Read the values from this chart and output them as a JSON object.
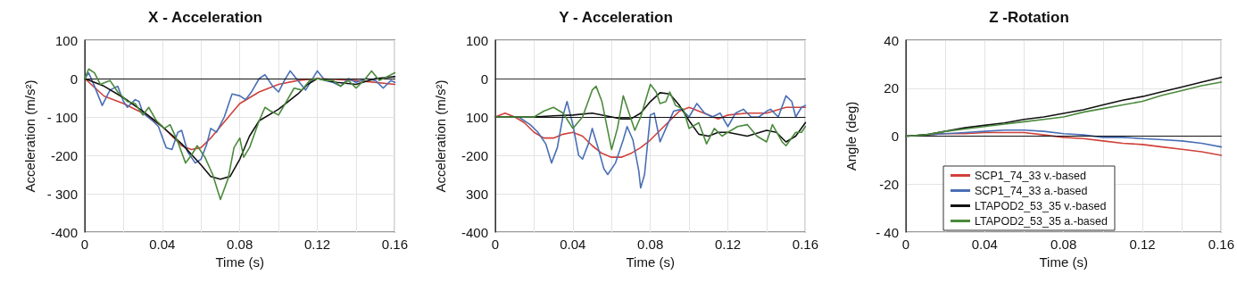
{
  "chart_data": [
    {
      "type": "line",
      "title": "X - Acceleration",
      "xlabel": "Time (s)",
      "ylabel": "Acceleration (m/s²)",
      "xlim": [
        0,
        0.16
      ],
      "ylim": [
        -400,
        100
      ],
      "xticks": [
        0,
        {
          "value": 0.02,
          "label": null
        },
        0.04,
        {
          "value": 0.06,
          "label": null
        },
        0.08,
        {
          "value": 0.1,
          "label": null
        },
        0.12,
        {
          "value": 0.14,
          "label": null
        },
        0.16
      ],
      "yticks": [
        -400,
        {
          "value": -300,
          "label": "- 300"
        },
        -200,
        {
          "value": -100,
          "label": "- 100"
        },
        0,
        100
      ],
      "grid": true,
      "legend": false,
      "marker": "none",
      "line_style": "solid",
      "ref_lines": [
        {
          "axis": "y",
          "value": 0,
          "color": "#111111"
        }
      ],
      "series": [
        {
          "color": "#d0413a",
          "x": [
            0,
            0.01,
            0.02,
            0.03,
            0.04,
            0.05,
            0.055,
            0.06,
            0.065,
            0.07,
            0.075,
            0.08,
            0.09,
            0.1,
            0.11,
            0.12,
            0.14,
            0.16
          ],
          "values": [
            0,
            -46,
            -65,
            -90,
            -125,
            -175,
            -185,
            -180,
            -155,
            -125,
            -95,
            -65,
            -35,
            -15,
            -5,
            0,
            -5,
            -15
          ]
        },
        {
          "color": "#4a6fb5",
          "x": [
            0,
            0.002,
            0.005,
            0.009,
            0.013,
            0.017,
            0.02,
            0.022,
            0.026,
            0.028,
            0.03,
            0.035,
            0.038,
            0.042,
            0.045,
            0.048,
            0.05,
            0.053,
            0.057,
            0.06,
            0.063,
            0.065,
            0.068,
            0.072,
            0.076,
            0.08,
            0.083,
            0.086,
            0.09,
            0.093,
            0.097,
            0.1,
            0.103,
            0.106,
            0.11,
            0.114,
            0.12,
            0.124,
            0.128,
            0.132,
            0.136,
            0.14,
            0.145,
            0.15,
            0.154,
            0.158,
            0.16
          ],
          "values": [
            0,
            15,
            -20,
            -70,
            -30,
            -20,
            -60,
            -75,
            -55,
            -60,
            -90,
            -110,
            -125,
            -180,
            -185,
            -140,
            -135,
            -190,
            -220,
            -210,
            -170,
            -130,
            -140,
            -100,
            -40,
            -45,
            -55,
            -35,
            0,
            10,
            -20,
            -35,
            -5,
            20,
            -5,
            -30,
            20,
            -5,
            -10,
            -20,
            0,
            -10,
            0,
            -5,
            -25,
            -5,
            -10
          ]
        },
        {
          "color": "#111111",
          "x": [
            0,
            0.01,
            0.02,
            0.03,
            0.04,
            0.05,
            0.06,
            0.065,
            0.07,
            0.075,
            0.08,
            0.085,
            0.09,
            0.1,
            0.11,
            0.115,
            0.12,
            0.13,
            0.14,
            0.15,
            0.16
          ],
          "values": [
            0,
            -20,
            -50,
            -85,
            -125,
            -170,
            -225,
            -255,
            -262,
            -255,
            -210,
            -150,
            -110,
            -80,
            -40,
            -15,
            0,
            -10,
            -15,
            0,
            5
          ]
        },
        {
          "color": "#4a8a3c",
          "x": [
            0,
            0.002,
            0.005,
            0.008,
            0.013,
            0.017,
            0.022,
            0.026,
            0.03,
            0.033,
            0.037,
            0.041,
            0.044,
            0.048,
            0.052,
            0.055,
            0.058,
            0.062,
            0.066,
            0.07,
            0.074,
            0.077,
            0.08,
            0.082,
            0.085,
            0.09,
            0.093,
            0.096,
            0.1,
            0.104,
            0.108,
            0.112,
            0.116,
            0.12,
            0.124,
            0.128,
            0.132,
            0.136,
            0.14,
            0.144,
            0.148,
            0.152,
            0.156,
            0.16
          ],
          "values": [
            0,
            25,
            15,
            -15,
            -5,
            -35,
            -60,
            -65,
            -95,
            -75,
            -110,
            -130,
            -120,
            -165,
            -220,
            -200,
            -175,
            -205,
            -250,
            -315,
            -260,
            -180,
            -155,
            -205,
            -180,
            -110,
            -75,
            -85,
            -95,
            -60,
            -25,
            -30,
            -5,
            0,
            -5,
            -5,
            -20,
            -5,
            -25,
            -5,
            20,
            -5,
            5,
            15
          ]
        }
      ]
    },
    {
      "type": "line",
      "title": "Y - Acceleration",
      "xlabel": "Time (s)",
      "ylabel": "Acceleration (m/s²)",
      "xlim": [
        0,
        0.16
      ],
      "ylim": [
        -400,
        100
      ],
      "xticks": [
        0,
        {
          "value": 0.02,
          "label": null
        },
        0.04,
        {
          "value": 0.06,
          "label": null
        },
        0.08,
        {
          "value": 0.1,
          "label": null
        },
        0.12,
        {
          "value": 0.14,
          "label": null
        },
        0.16
      ],
      "yticks": [
        -400,
        {
          "value": -300,
          "label": "300"
        },
        -200,
        {
          "value": -100,
          "label": "100"
        },
        0,
        100
      ],
      "grid": true,
      "legend": false,
      "marker": "none",
      "line_style": "solid",
      "ref_lines": [
        {
          "axis": "y",
          "value": -100,
          "color": "#111111"
        }
      ],
      "series": [
        {
          "color": "#d0413a",
          "x": [
            0,
            0.005,
            0.01,
            0.015,
            0.02,
            0.025,
            0.03,
            0.035,
            0.04,
            0.045,
            0.05,
            0.055,
            0.06,
            0.065,
            0.07,
            0.075,
            0.08,
            0.085,
            0.09,
            0.095,
            0.1,
            0.11,
            0.115,
            0.12,
            0.13,
            0.14,
            0.15,
            0.16
          ],
          "values": [
            -100,
            -90,
            -100,
            -115,
            -140,
            -155,
            -155,
            -145,
            -140,
            -150,
            -175,
            -195,
            -205,
            -205,
            -195,
            -180,
            -160,
            -135,
            -110,
            -85,
            -75,
            -95,
            -105,
            -95,
            -90,
            -90,
            -75,
            -75
          ]
        },
        {
          "color": "#4a6fb5",
          "x": [
            0,
            0.012,
            0.018,
            0.022,
            0.026,
            0.029,
            0.032,
            0.035,
            0.037,
            0.04,
            0.043,
            0.045,
            0.048,
            0.05,
            0.053,
            0.056,
            0.058,
            0.062,
            0.066,
            0.068,
            0.071,
            0.074,
            0.075,
            0.077,
            0.08,
            0.082,
            0.085,
            0.088,
            0.092,
            0.096,
            0.1,
            0.104,
            0.108,
            0.112,
            0.116,
            0.12,
            0.124,
            0.128,
            0.132,
            0.136,
            0.14,
            0.142,
            0.146,
            0.15,
            0.153,
            0.155,
            0.158,
            0.16
          ],
          "values": [
            -100,
            -100,
            -120,
            -140,
            -170,
            -220,
            -180,
            -95,
            -60,
            -120,
            -200,
            -210,
            -170,
            -130,
            -180,
            -235,
            -250,
            -220,
            -160,
            -125,
            -160,
            -240,
            -285,
            -250,
            -95,
            -90,
            -165,
            -130,
            -85,
            -80,
            -100,
            -65,
            -90,
            -100,
            -90,
            -125,
            -90,
            -80,
            -100,
            -100,
            -85,
            -80,
            -100,
            -45,
            -60,
            -100,
            -75,
            -70
          ]
        },
        {
          "color": "#111111",
          "x": [
            0,
            0.02,
            0.03,
            0.04,
            0.05,
            0.06,
            0.065,
            0.07,
            0.075,
            0.08,
            0.085,
            0.09,
            0.095,
            0.1,
            0.105,
            0.11,
            0.115,
            0.12,
            0.13,
            0.14,
            0.145,
            0.15,
            0.155,
            0.16
          ],
          "values": [
            -100,
            -100,
            -97,
            -95,
            -90,
            -100,
            -105,
            -105,
            -90,
            -60,
            -37,
            -40,
            -70,
            -110,
            -145,
            -150,
            -140,
            -140,
            -150,
            -135,
            -140,
            -165,
            -150,
            -115
          ]
        },
        {
          "color": "#4a8a3c",
          "x": [
            0,
            0.015,
            0.02,
            0.025,
            0.03,
            0.035,
            0.04,
            0.045,
            0.05,
            0.052,
            0.055,
            0.06,
            0.063,
            0.066,
            0.069,
            0.072,
            0.075,
            0.08,
            0.083,
            0.085,
            0.088,
            0.09,
            0.093,
            0.097,
            0.1,
            0.105,
            0.109,
            0.113,
            0.117,
            0.12,
            0.125,
            0.13,
            0.135,
            0.14,
            0.143,
            0.148,
            0.15,
            0.155,
            0.158,
            0.16
          ],
          "values": [
            -100,
            -100,
            -100,
            -85,
            -75,
            -90,
            -130,
            -100,
            -30,
            -20,
            -60,
            -185,
            -130,
            -45,
            -90,
            -135,
            -100,
            -15,
            -35,
            -65,
            -60,
            -35,
            -70,
            -80,
            -130,
            -115,
            -170,
            -130,
            -150,
            -140,
            -125,
            -120,
            -150,
            -165,
            -120,
            -165,
            -175,
            -140,
            -140,
            -125
          ]
        }
      ]
    },
    {
      "type": "line",
      "title": "Z -Rotation",
      "xlabel": "Time (s)",
      "ylabel": "Angle (deg)",
      "xlim": [
        0,
        0.16
      ],
      "ylim": [
        -40,
        40
      ],
      "xticks": [
        0,
        {
          "value": 0.02,
          "label": null
        },
        0.04,
        {
          "value": 0.06,
          "label": null
        },
        0.08,
        {
          "value": 0.1,
          "label": null
        },
        0.12,
        {
          "value": 0.14,
          "label": null
        },
        0.16
      ],
      "yticks": [
        {
          "value": -40,
          "label": "- 40"
        },
        -20,
        0,
        20,
        40
      ],
      "grid": true,
      "legend": "bottom",
      "marker": "none",
      "line_style": "solid",
      "ref_lines": [
        {
          "axis": "y",
          "value": 0,
          "color": "#111111"
        }
      ],
      "series": [
        {
          "name": "SCP1_74_33 v.-based",
          "color": "#d0413a",
          "x": [
            0,
            0.01,
            0.02,
            0.03,
            0.04,
            0.05,
            0.06,
            0.07,
            0.08,
            0.09,
            0.1,
            0.11,
            0.12,
            0.13,
            0.14,
            0.15,
            0.16
          ],
          "values": [
            0,
            0.5,
            1,
            1,
            1.5,
            1.5,
            1.5,
            0.5,
            -0.5,
            -1,
            -2,
            -3,
            -3.5,
            -4.5,
            -5.5,
            -6.5,
            -8
          ]
        },
        {
          "name": "SCP1_74_33 a.-based",
          "color": "#4a6fb5",
          "x": [
            0,
            0.01,
            0.02,
            0.03,
            0.04,
            0.05,
            0.06,
            0.07,
            0.08,
            0.09,
            0.1,
            0.11,
            0.12,
            0.13,
            0.14,
            0.15,
            0.16
          ],
          "values": [
            0,
            0.5,
            1,
            1.5,
            2,
            2.5,
            2.5,
            2,
            1,
            0.5,
            -0.5,
            -0.5,
            -1,
            -1.5,
            -2,
            -3,
            -4.5
          ]
        },
        {
          "name": "LTAPOD2_53_35 v.-based",
          "color": "#111111",
          "x": [
            0,
            0.01,
            0.02,
            0.03,
            0.04,
            0.05,
            0.06,
            0.07,
            0.08,
            0.09,
            0.1,
            0.11,
            0.12,
            0.13,
            0.14,
            0.15,
            0.16
          ],
          "values": [
            0,
            0.5,
            2,
            3.5,
            4.5,
            5.5,
            7,
            8,
            9.5,
            11,
            13,
            15,
            16.5,
            18.5,
            20.5,
            22.5,
            24.5
          ]
        },
        {
          "name": "LTAPOD2_53_35 a.-based",
          "color": "#4a8a3c",
          "x": [
            0,
            0.01,
            0.02,
            0.03,
            0.04,
            0.05,
            0.06,
            0.07,
            0.08,
            0.09,
            0.1,
            0.11,
            0.12,
            0.13,
            0.14,
            0.15,
            0.16
          ],
          "values": [
            0,
            0.5,
            2,
            3,
            4,
            5,
            6,
            7,
            8,
            10,
            11.5,
            13,
            14.5,
            17,
            19,
            21,
            22.5
          ]
        }
      ]
    }
  ]
}
